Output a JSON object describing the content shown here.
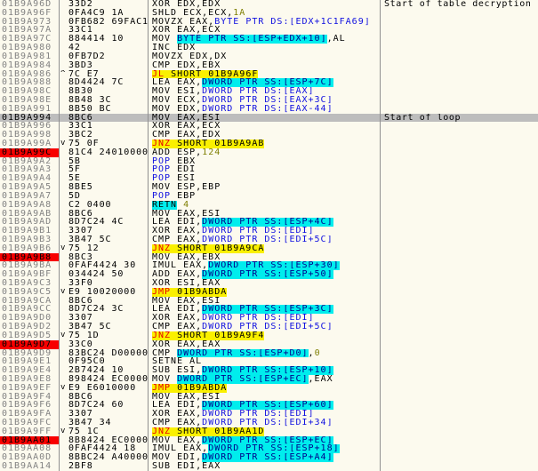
{
  "pane": {
    "name": "disassembly"
  },
  "colors": {
    "background": "#FCFAEE",
    "divider": "#909090",
    "address_text": "#828282",
    "selected_bg": "#BDBDBD",
    "breakpoint_bg": "#F80000",
    "highlight_jump": "#FAF000",
    "mnemonic_jump": "#E80000",
    "memory_text": "#1010E0",
    "stack_bg": "#00EDED",
    "stack_text": "#00008B",
    "immediate": "#7E7E00"
  },
  "rows": [
    {
      "addr": "01B9A96D",
      "bytes": "33D2",
      "segs": [
        [
          "p",
          "XOR EDX,EDX"
        ]
      ],
      "comment": "Start of table decryption"
    },
    {
      "addr": "01B9A96F",
      "bytes": "0FA4C9 1A",
      "segs": [
        [
          "p",
          "SHLD ECX,ECX,"
        ],
        [
          "i",
          "1A"
        ]
      ]
    },
    {
      "addr": "01B9A973",
      "bytes": "0FB682 69FAC101",
      "segs": [
        [
          "p",
          "MOVZX EAX,"
        ],
        [
          "m",
          "BYTE PTR DS:[EDX+1C1FA69]"
        ]
      ]
    },
    {
      "addr": "01B9A97A",
      "bytes": "33C1",
      "segs": [
        [
          "p",
          "XOR EAX,ECX"
        ]
      ]
    },
    {
      "addr": "01B9A97C",
      "bytes": "884414 10",
      "segs": [
        [
          "p",
          "MOV "
        ],
        [
          "s",
          "BYTE PTR SS:[ESP+EDX+10]"
        ],
        [
          "p",
          ",AL"
        ]
      ]
    },
    {
      "addr": "01B9A980",
      "bytes": "42",
      "segs": [
        [
          "p",
          "INC EDX"
        ]
      ]
    },
    {
      "addr": "01B9A981",
      "bytes": "0FB7D2",
      "segs": [
        [
          "p",
          "MOVZX EDX,DX"
        ]
      ]
    },
    {
      "addr": "01B9A984",
      "bytes": "3BD3",
      "segs": [
        [
          "p",
          "CMP EDX,EBX"
        ]
      ]
    },
    {
      "addr": "01B9A986",
      "arrow": "^",
      "bytes": "7C E7",
      "segs": [
        [
          "jr",
          "JL"
        ],
        [
          "jp",
          " SHORT 01B9A96F"
        ]
      ]
    },
    {
      "addr": "01B9A988",
      "bytes": "8D4424 7C",
      "segs": [
        [
          "p",
          "LEA EAX,"
        ],
        [
          "s",
          "DWORD PTR SS:[ESP+7C]"
        ]
      ]
    },
    {
      "addr": "01B9A98C",
      "bytes": "8B30",
      "segs": [
        [
          "p",
          "MOV ESI,"
        ],
        [
          "m",
          "DWORD PTR DS:[EAX]"
        ]
      ]
    },
    {
      "addr": "01B9A98E",
      "bytes": "8B48 3C",
      "segs": [
        [
          "p",
          "MOV ECX,"
        ],
        [
          "m",
          "DWORD PTR DS:[EAX+3C]"
        ]
      ]
    },
    {
      "addr": "01B9A991",
      "bytes": "8B50 BC",
      "segs": [
        [
          "p",
          "MOV EDX,"
        ],
        [
          "m",
          "DWORD PTR DS:[EAX-44]"
        ]
      ]
    },
    {
      "addr": "01B9A994",
      "bytes": "8BC6",
      "segs": [
        [
          "p",
          "MOV EAX,ESI"
        ]
      ],
      "comment": "Start of loop",
      "sel": true
    },
    {
      "addr": "01B9A996",
      "bytes": "33C1",
      "segs": [
        [
          "p",
          "XOR EAX,ECX"
        ]
      ]
    },
    {
      "addr": "01B9A998",
      "bytes": "3BC2",
      "segs": [
        [
          "p",
          "CMP EAX,EDX"
        ]
      ]
    },
    {
      "addr": "01B9A99A",
      "arrow": "v",
      "bytes": "75 0F",
      "segs": [
        [
          "jr",
          "JNZ"
        ],
        [
          "jp",
          " SHORT 01B9A9AB"
        ]
      ]
    },
    {
      "addr": "01B9A99C",
      "bp": true,
      "bytes": "81C4 24010000",
      "segs": [
        [
          "p",
          "ADD ESP,"
        ],
        [
          "i",
          "124"
        ]
      ]
    },
    {
      "addr": "01B9A9A2",
      "bytes": "5B",
      "segs": [
        [
          "k",
          "POP"
        ],
        [
          "p",
          " EBX"
        ]
      ]
    },
    {
      "addr": "01B9A9A3",
      "bytes": "5F",
      "segs": [
        [
          "k",
          "POP"
        ],
        [
          "p",
          " EDI"
        ]
      ]
    },
    {
      "addr": "01B9A9A4",
      "bytes": "5E",
      "segs": [
        [
          "k",
          "POP"
        ],
        [
          "p",
          " ESI"
        ]
      ]
    },
    {
      "addr": "01B9A9A5",
      "bytes": "8BE5",
      "segs": [
        [
          "p",
          "MOV ESP,EBP"
        ]
      ]
    },
    {
      "addr": "01B9A9A7",
      "bytes": "5D",
      "segs": [
        [
          "k",
          "POP"
        ],
        [
          "p",
          " EBP"
        ]
      ]
    },
    {
      "addr": "01B9A9A8",
      "bytes": "C2 0400",
      "segs": [
        [
          "r",
          "RETN"
        ],
        [
          "p",
          " "
        ],
        [
          "i",
          "4"
        ]
      ]
    },
    {
      "addr": "01B9A9AB",
      "bytes": "8BC6",
      "segs": [
        [
          "p",
          "MOV EAX,ESI"
        ]
      ]
    },
    {
      "addr": "01B9A9AD",
      "bytes": "8D7C24 4C",
      "segs": [
        [
          "p",
          "LEA EDI,"
        ],
        [
          "s",
          "DWORD PTR SS:[ESP+4C]"
        ]
      ]
    },
    {
      "addr": "01B9A9B1",
      "bytes": "3307",
      "segs": [
        [
          "p",
          "XOR EAX,"
        ],
        [
          "m",
          "DWORD PTR DS:[EDI]"
        ]
      ]
    },
    {
      "addr": "01B9A9B3",
      "bytes": "3B47 5C",
      "segs": [
        [
          "p",
          "CMP EAX,"
        ],
        [
          "m",
          "DWORD PTR DS:[EDI+5C]"
        ]
      ]
    },
    {
      "addr": "01B9A9B6",
      "arrow": "v",
      "bytes": "75 12",
      "segs": [
        [
          "jr",
          "JNZ"
        ],
        [
          "jp",
          " SHORT 01B9A9CA"
        ]
      ]
    },
    {
      "addr": "01B9A9B8",
      "bp": true,
      "bytes": "8BC3",
      "segs": [
        [
          "p",
          "MOV EAX,EBX"
        ]
      ]
    },
    {
      "addr": "01B9A9BA",
      "bytes": "0FAF4424 30",
      "segs": [
        [
          "p",
          "IMUL EAX,"
        ],
        [
          "s",
          "DWORD PTR SS:[ESP+30]"
        ]
      ]
    },
    {
      "addr": "01B9A9BF",
      "bytes": "034424 50",
      "segs": [
        [
          "p",
          "ADD EAX,"
        ],
        [
          "s",
          "DWORD PTR SS:[ESP+50]"
        ]
      ]
    },
    {
      "addr": "01B9A9C3",
      "bytes": "33F0",
      "segs": [
        [
          "p",
          "XOR ESI,EAX"
        ]
      ]
    },
    {
      "addr": "01B9A9C5",
      "arrow": "v",
      "bytes": "E9 10020000",
      "segs": [
        [
          "jr",
          "JMP"
        ],
        [
          "jp",
          " 01B9ABDA"
        ]
      ]
    },
    {
      "addr": "01B9A9CA",
      "bytes": "8BC6",
      "segs": [
        [
          "p",
          "MOV EAX,ESI"
        ]
      ]
    },
    {
      "addr": "01B9A9CC",
      "bytes": "8D7C24 3C",
      "segs": [
        [
          "p",
          "LEA EDI,"
        ],
        [
          "s",
          "DWORD PTR SS:[ESP+3C]"
        ]
      ]
    },
    {
      "addr": "01B9A9D0",
      "bytes": "3307",
      "segs": [
        [
          "p",
          "XOR EAX,"
        ],
        [
          "m",
          "DWORD PTR DS:[EDI]"
        ]
      ]
    },
    {
      "addr": "01B9A9D2",
      "bytes": "3B47 5C",
      "segs": [
        [
          "p",
          "CMP EAX,"
        ],
        [
          "m",
          "DWORD PTR DS:[EDI+5C]"
        ]
      ]
    },
    {
      "addr": "01B9A9D5",
      "arrow": "v",
      "bytes": "75 1D",
      "segs": [
        [
          "jr",
          "JNZ"
        ],
        [
          "jp",
          " SHORT 01B9A9F4"
        ]
      ]
    },
    {
      "addr": "01B9A9D7",
      "bp": true,
      "bytes": "33C0",
      "segs": [
        [
          "p",
          "XOR EAX,EAX"
        ]
      ]
    },
    {
      "addr": "01B9A9D9",
      "bytes": "83BC24 D0000000 00",
      "segs": [
        [
          "p",
          "CMP "
        ],
        [
          "s",
          "DWORD PTR SS:[ESP+D0]"
        ],
        [
          "p",
          ","
        ],
        [
          "i",
          "0"
        ]
      ]
    },
    {
      "addr": "01B9A9E1",
      "bytes": "0F95C0",
      "segs": [
        [
          "p",
          "SETNE AL"
        ]
      ]
    },
    {
      "addr": "01B9A9E4",
      "bytes": "2B7424 10",
      "segs": [
        [
          "p",
          "SUB ESI,"
        ],
        [
          "s",
          "DWORD PTR SS:[ESP+10]"
        ]
      ]
    },
    {
      "addr": "01B9A9E8",
      "bytes": "898424 EC000000",
      "segs": [
        [
          "p",
          "MOV "
        ],
        [
          "s",
          "DWORD PTR SS:[ESP+EC]"
        ],
        [
          "p",
          ",EAX"
        ]
      ]
    },
    {
      "addr": "01B9A9EF",
      "arrow": "v",
      "bytes": "E9 E6010000",
      "segs": [
        [
          "jr",
          "JMP"
        ],
        [
          "jp",
          " 01B9ABDA"
        ]
      ]
    },
    {
      "addr": "01B9A9F4",
      "bytes": "8BC6",
      "segs": [
        [
          "p",
          "MOV EAX,ESI"
        ]
      ]
    },
    {
      "addr": "01B9A9F6",
      "bytes": "8D7C24 60",
      "segs": [
        [
          "p",
          "LEA EDI,"
        ],
        [
          "s",
          "DWORD PTR SS:[ESP+60]"
        ]
      ]
    },
    {
      "addr": "01B9A9FA",
      "bytes": "3307",
      "segs": [
        [
          "p",
          "XOR EAX,"
        ],
        [
          "m",
          "DWORD PTR DS:[EDI]"
        ]
      ]
    },
    {
      "addr": "01B9A9FC",
      "bytes": "3B47 34",
      "segs": [
        [
          "p",
          "CMP EAX,"
        ],
        [
          "m",
          "DWORD PTR DS:[EDI+34]"
        ]
      ]
    },
    {
      "addr": "01B9A9FF",
      "arrow": "v",
      "bytes": "75 1C",
      "segs": [
        [
          "jr",
          "JNZ"
        ],
        [
          "jp",
          " SHORT 01B9AA1D"
        ]
      ]
    },
    {
      "addr": "01B9AA01",
      "bp": true,
      "bytes": "8B8424 EC000000",
      "segs": [
        [
          "p",
          "MOV EAX,"
        ],
        [
          "s",
          "DWORD PTR SS:[ESP+EC]"
        ]
      ]
    },
    {
      "addr": "01B9AA08",
      "bytes": "0FAF4424 18",
      "segs": [
        [
          "p",
          "IMUL EAX,"
        ],
        [
          "s",
          "DWORD PTR SS:[ESP+18]"
        ]
      ]
    },
    {
      "addr": "01B9AA0D",
      "bytes": "8BBC24 A4000000",
      "segs": [
        [
          "p",
          "MOV EDI,"
        ],
        [
          "s",
          "DWORD PTR SS:[ESP+A4]"
        ]
      ]
    },
    {
      "addr": "01B9AA14",
      "bytes": "2BF8",
      "segs": [
        [
          "p",
          "SUB EDI,EAX"
        ]
      ]
    }
  ]
}
